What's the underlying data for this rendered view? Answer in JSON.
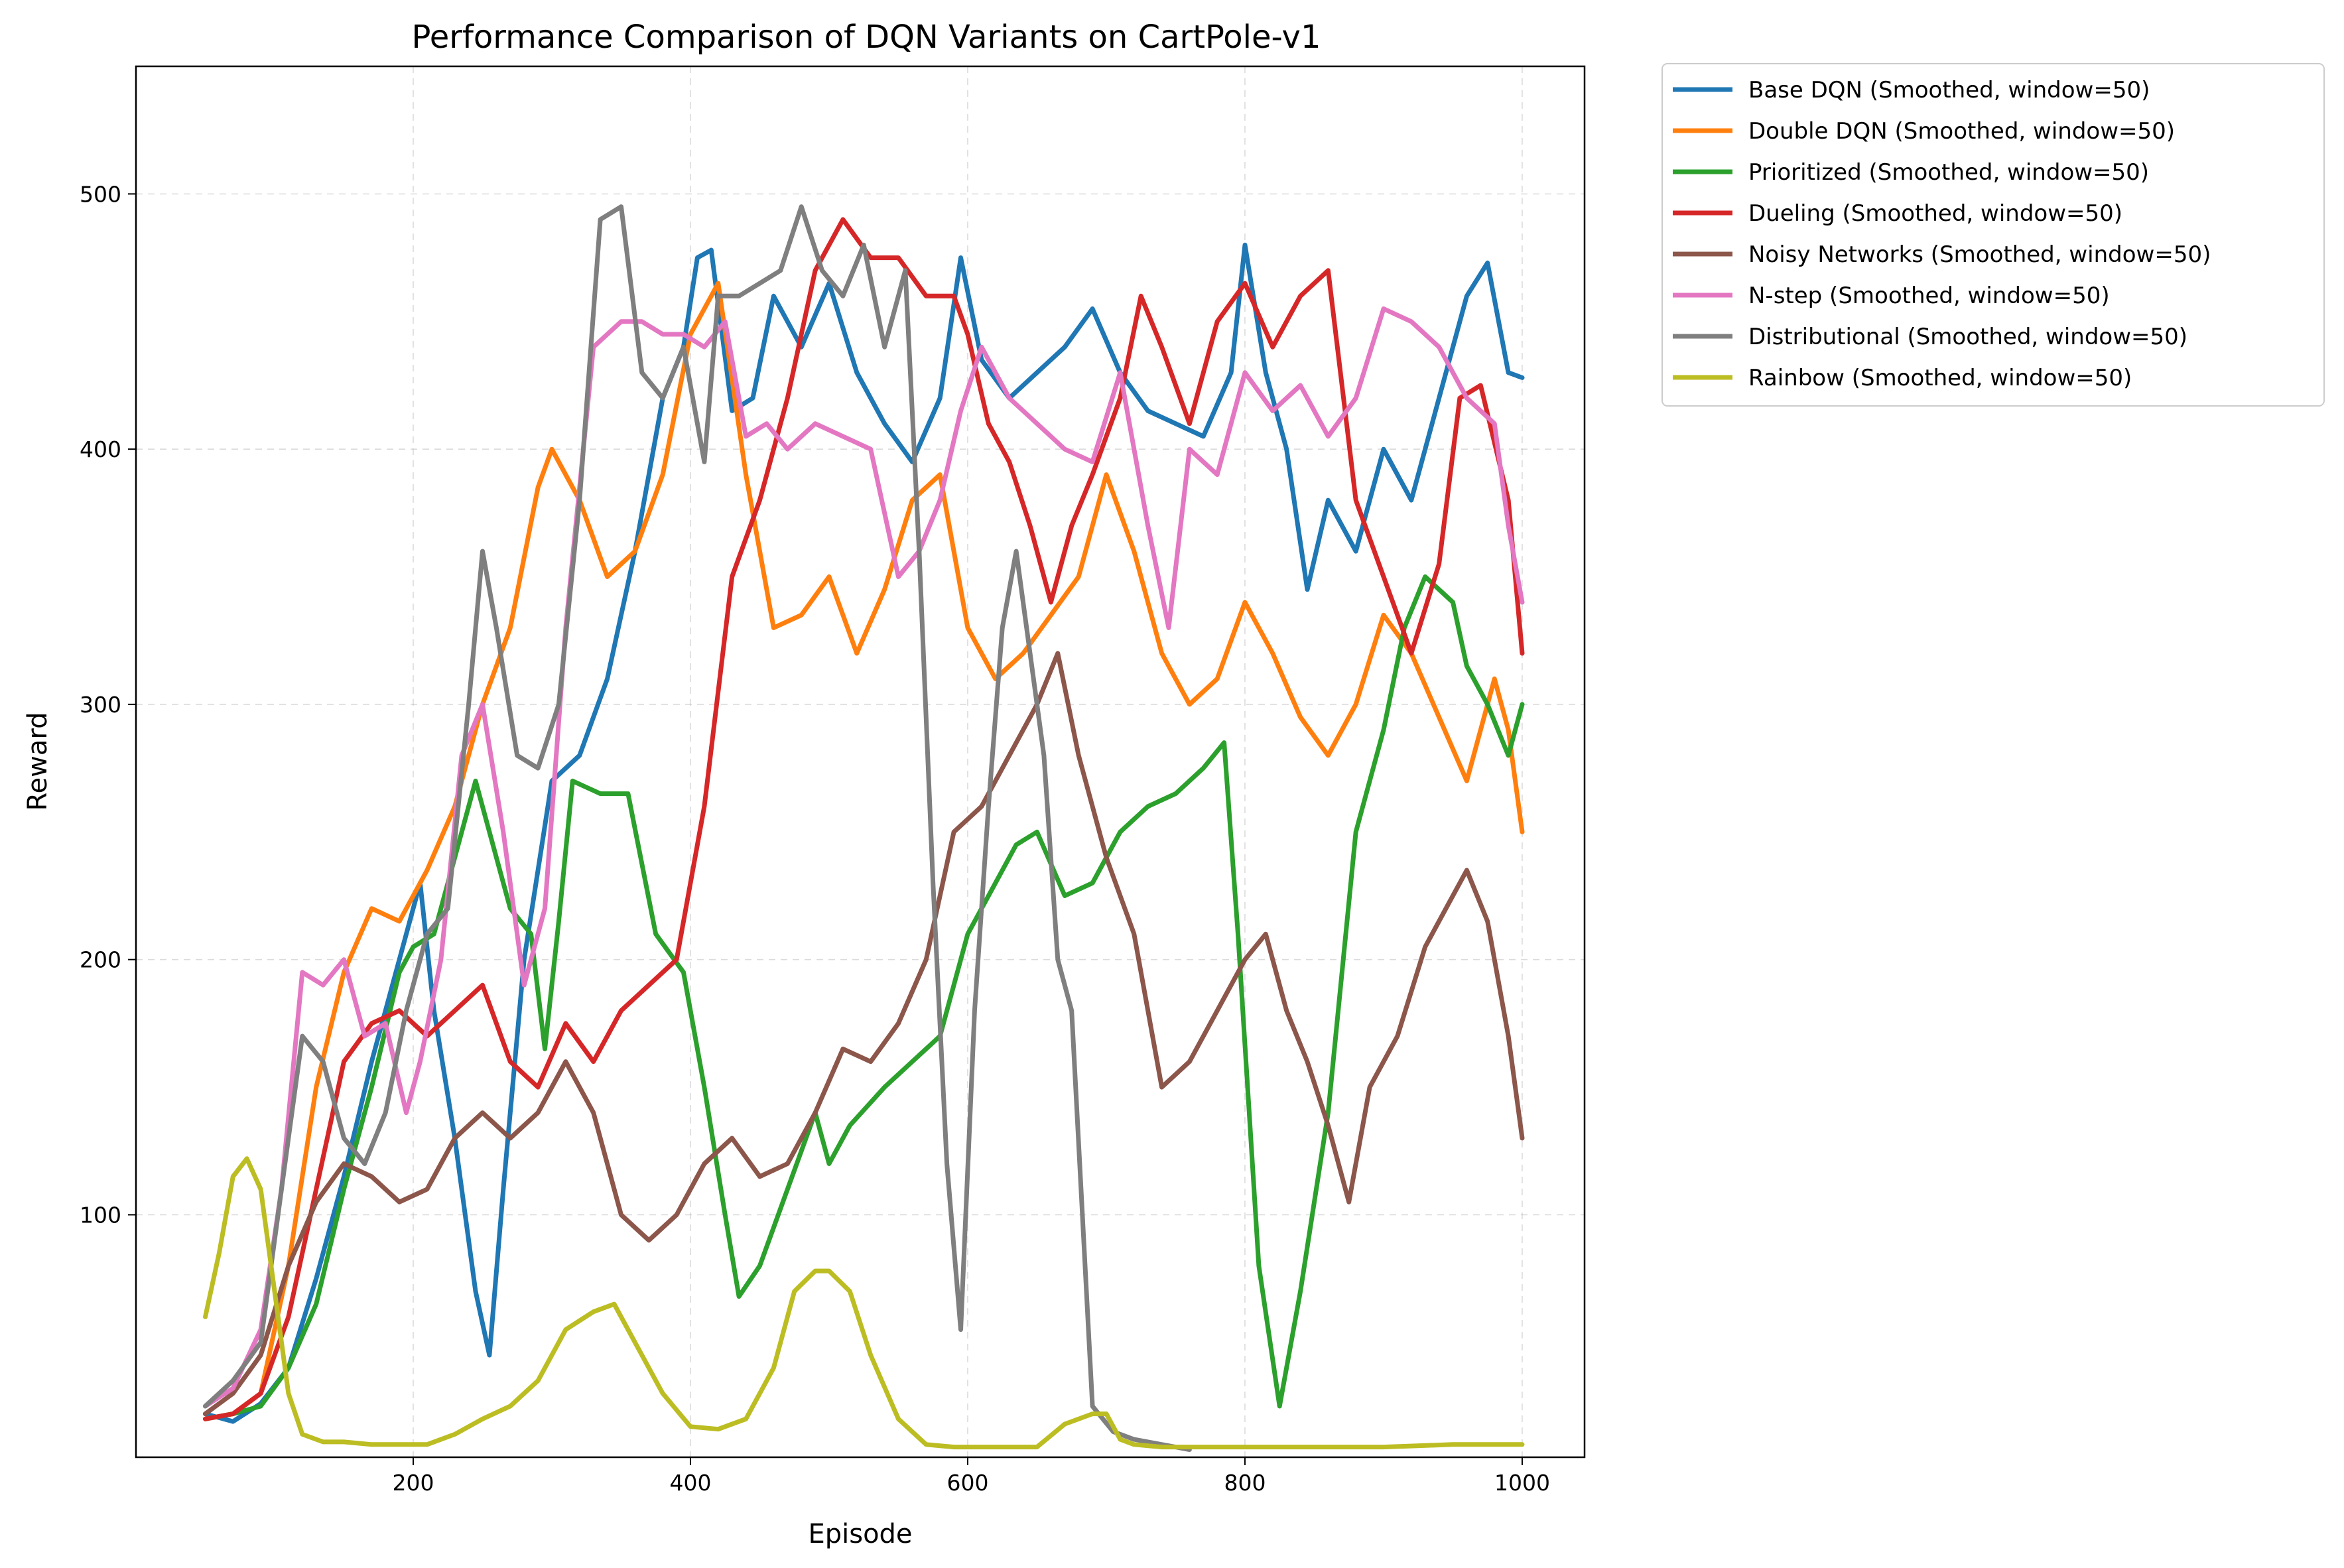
{
  "chart_data": {
    "type": "line",
    "title": "Performance Comparison of DQN Variants on CartPole-v1",
    "xlabel": "Episode",
    "ylabel": "Reward",
    "xlim": [
      0,
      1045
    ],
    "ylim": [
      5,
      550
    ],
    "xticks": [
      200,
      400,
      600,
      800,
      1000
    ],
    "yticks": [
      100,
      200,
      300,
      400,
      500
    ],
    "grid": true,
    "legend_position": "outside-upper-right",
    "series": [
      {
        "name": "Base DQN (Smoothed, window=50)",
        "color": "#1f77b4",
        "x": [
          50,
          70,
          90,
          110,
          130,
          150,
          170,
          190,
          205,
          215,
          230,
          245,
          255,
          265,
          280,
          300,
          320,
          340,
          360,
          380,
          395,
          405,
          415,
          430,
          445,
          460,
          480,
          500,
          520,
          540,
          560,
          580,
          595,
          610,
          630,
          650,
          670,
          690,
          710,
          730,
          750,
          770,
          790,
          800,
          815,
          830,
          845,
          860,
          880,
          900,
          920,
          940,
          960,
          975,
          990,
          1000
        ],
        "y": [
          22,
          19,
          26,
          40,
          75,
          115,
          160,
          200,
          230,
          180,
          130,
          70,
          45,
          110,
          200,
          270,
          280,
          310,
          360,
          420,
          440,
          475,
          478,
          415,
          420,
          460,
          440,
          465,
          430,
          410,
          395,
          420,
          475,
          435,
          420,
          430,
          440,
          455,
          430,
          415,
          410,
          405,
          430,
          480,
          430,
          400,
          345,
          380,
          360,
          400,
          380,
          420,
          460,
          473,
          430,
          428
        ]
      },
      {
        "name": "Double DQN (Smoothed, window=50)",
        "color": "#ff7f0e",
        "x": [
          50,
          70,
          90,
          110,
          130,
          150,
          170,
          190,
          210,
          230,
          250,
          270,
          290,
          300,
          320,
          340,
          360,
          380,
          400,
          420,
          440,
          460,
          480,
          500,
          520,
          540,
          560,
          580,
          600,
          620,
          640,
          660,
          680,
          700,
          720,
          740,
          760,
          780,
          800,
          820,
          840,
          860,
          880,
          900,
          920,
          940,
          960,
          980,
          990,
          1000
        ],
        "y": [
          20,
          22,
          30,
          80,
          150,
          195,
          220,
          215,
          235,
          260,
          300,
          330,
          385,
          400,
          380,
          350,
          360,
          390,
          445,
          465,
          390,
          330,
          335,
          350,
          320,
          345,
          380,
          390,
          330,
          310,
          320,
          335,
          350,
          390,
          360,
          320,
          300,
          310,
          340,
          320,
          295,
          280,
          300,
          335,
          320,
          295,
          270,
          310,
          290,
          250
        ]
      },
      {
        "name": "Prioritized (Smoothed, window=50)",
        "color": "#2ca02c",
        "x": [
          50,
          70,
          90,
          110,
          130,
          150,
          170,
          190,
          200,
          215,
          230,
          245,
          255,
          270,
          285,
          295,
          305,
          315,
          335,
          355,
          375,
          395,
          410,
          425,
          435,
          450,
          470,
          490,
          500,
          515,
          540,
          560,
          580,
          600,
          620,
          635,
          650,
          670,
          690,
          710,
          730,
          750,
          770,
          785,
          795,
          810,
          825,
          840,
          860,
          880,
          900,
          915,
          930,
          950,
          960,
          975,
          990,
          1000
        ],
        "y": [
          20,
          22,
          25,
          40,
          65,
          110,
          150,
          195,
          205,
          210,
          240,
          270,
          250,
          220,
          210,
          165,
          215,
          270,
          265,
          265,
          210,
          195,
          150,
          100,
          68,
          80,
          110,
          140,
          120,
          135,
          150,
          160,
          170,
          210,
          230,
          245,
          250,
          225,
          230,
          250,
          260,
          265,
          275,
          285,
          210,
          80,
          25,
          70,
          140,
          250,
          290,
          330,
          350,
          340,
          315,
          300,
          280,
          300
        ]
      },
      {
        "name": "Dueling (Smoothed, window=50)",
        "color": "#d62728",
        "x": [
          50,
          70,
          90,
          110,
          130,
          150,
          170,
          190,
          210,
          230,
          250,
          270,
          290,
          310,
          330,
          350,
          370,
          390,
          410,
          430,
          450,
          470,
          490,
          510,
          530,
          550,
          570,
          590,
          600,
          615,
          630,
          645,
          660,
          675,
          690,
          710,
          725,
          740,
          760,
          780,
          800,
          820,
          840,
          860,
          880,
          900,
          920,
          940,
          955,
          970,
          990,
          1000
        ],
        "y": [
          20,
          22,
          30,
          60,
          110,
          160,
          175,
          180,
          170,
          180,
          190,
          160,
          150,
          175,
          160,
          180,
          190,
          200,
          260,
          350,
          380,
          420,
          470,
          490,
          475,
          475,
          460,
          460,
          445,
          410,
          395,
          370,
          340,
          370,
          390,
          420,
          460,
          440,
          410,
          450,
          465,
          440,
          460,
          470,
          380,
          350,
          320,
          355,
          420,
          425,
          380,
          320
        ]
      },
      {
        "name": "Noisy Networks (Smoothed, window=50)",
        "color": "#8c564b",
        "x": [
          50,
          70,
          90,
          110,
          130,
          150,
          170,
          190,
          210,
          230,
          250,
          270,
          290,
          310,
          330,
          350,
          370,
          390,
          410,
          430,
          450,
          470,
          490,
          510,
          530,
          550,
          570,
          590,
          610,
          630,
          650,
          665,
          680,
          700,
          720,
          740,
          760,
          780,
          800,
          815,
          830,
          845,
          860,
          875,
          890,
          910,
          930,
          945,
          960,
          975,
          990,
          1000
        ],
        "y": [
          22,
          30,
          45,
          80,
          105,
          120,
          115,
          105,
          110,
          130,
          140,
          130,
          140,
          160,
          140,
          100,
          90,
          100,
          120,
          130,
          115,
          120,
          140,
          165,
          160,
          175,
          200,
          250,
          260,
          280,
          300,
          320,
          280,
          240,
          210,
          150,
          160,
          180,
          200,
          210,
          180,
          160,
          135,
          105,
          150,
          170,
          205,
          220,
          235,
          215,
          170,
          130
        ]
      },
      {
        "name": "N-step (Smoothed, window=50)",
        "color": "#e377c2",
        "x": [
          50,
          70,
          90,
          105,
          120,
          135,
          150,
          165,
          180,
          195,
          205,
          220,
          235,
          250,
          265,
          280,
          295,
          310,
          330,
          350,
          365,
          380,
          395,
          410,
          425,
          440,
          455,
          470,
          490,
          510,
          530,
          550,
          565,
          580,
          595,
          610,
          630,
          650,
          670,
          690,
          710,
          730,
          745,
          760,
          780,
          800,
          820,
          840,
          860,
          880,
          900,
          920,
          940,
          960,
          980,
          990,
          1000
        ],
        "y": [
          25,
          32,
          55,
          110,
          195,
          190,
          200,
          170,
          175,
          140,
          160,
          200,
          280,
          300,
          250,
          190,
          220,
          330,
          440,
          450,
          450,
          445,
          445,
          440,
          450,
          405,
          410,
          400,
          410,
          405,
          400,
          350,
          360,
          380,
          415,
          440,
          420,
          410,
          400,
          395,
          430,
          370,
          330,
          400,
          390,
          430,
          415,
          425,
          405,
          420,
          455,
          450,
          440,
          420,
          410,
          370,
          340
        ]
      },
      {
        "name": "Distributional (Smoothed, window=50)",
        "color": "#7f7f7f",
        "x": [
          50,
          70,
          90,
          105,
          120,
          135,
          150,
          165,
          180,
          195,
          210,
          225,
          240,
          250,
          260,
          275,
          290,
          305,
          320,
          335,
          350,
          365,
          380,
          395,
          410,
          420,
          435,
          450,
          465,
          480,
          495,
          510,
          525,
          540,
          555,
          565,
          575,
          585,
          595,
          605,
          615,
          625,
          635,
          645,
          655,
          665,
          675,
          690,
          705,
          720,
          740,
          760
        ],
        "y": [
          25,
          35,
          50,
          110,
          170,
          160,
          130,
          120,
          140,
          180,
          210,
          220,
          300,
          360,
          330,
          280,
          275,
          300,
          380,
          490,
          495,
          430,
          420,
          440,
          395,
          460,
          460,
          465,
          470,
          495,
          470,
          460,
          480,
          440,
          470,
          360,
          230,
          120,
          55,
          180,
          260,
          330,
          360,
          320,
          280,
          200,
          180,
          25,
          15,
          12,
          10,
          8
        ]
      },
      {
        "name": "Rainbow (Smoothed, window=50)",
        "color": "#bcbd22",
        "x": [
          50,
          60,
          70,
          80,
          90,
          100,
          110,
          120,
          135,
          150,
          170,
          190,
          210,
          230,
          250,
          270,
          290,
          310,
          330,
          345,
          360,
          380,
          400,
          420,
          440,
          460,
          475,
          490,
          500,
          515,
          530,
          550,
          570,
          590,
          610,
          630,
          650,
          670,
          690,
          700,
          710,
          720,
          740,
          760,
          800,
          850,
          900,
          950,
          1000
        ],
        "y": [
          60,
          85,
          115,
          122,
          110,
          70,
          30,
          14,
          11,
          11,
          10,
          10,
          10,
          14,
          20,
          25,
          35,
          55,
          62,
          65,
          50,
          30,
          17,
          16,
          20,
          40,
          70,
          78,
          78,
          70,
          45,
          20,
          10,
          9,
          9,
          9,
          9,
          18,
          22,
          22,
          12,
          10,
          9,
          9,
          9,
          9,
          9,
          10,
          10
        ]
      }
    ]
  }
}
